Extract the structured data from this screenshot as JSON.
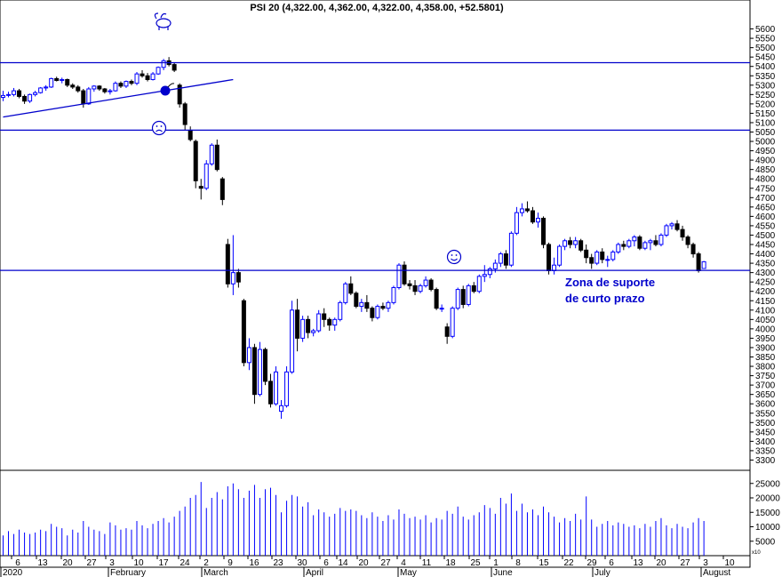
{
  "chart_data": {
    "type": "candlestick",
    "title": "PSI 20 (4,322.00, 4,362.00, 4,322.00, 4,358.00, +52.5801)",
    "price_axis": {
      "range": [
        3250,
        5650
      ],
      "ticks": [
        3300,
        3350,
        3400,
        3450,
        3500,
        3550,
        3600,
        3650,
        3700,
        3750,
        3800,
        3850,
        3900,
        3950,
        4000,
        4050,
        4100,
        4150,
        4200,
        4250,
        4300,
        4350,
        4400,
        4450,
        4500,
        4550,
        4600,
        4650,
        4700,
        4750,
        4800,
        4850,
        4900,
        4950,
        5000,
        5050,
        5100,
        5150,
        5200,
        5250,
        5300,
        5350,
        5400,
        5450,
        5500,
        5550,
        5600
      ]
    },
    "volume_axis": {
      "range": [
        0,
        28000
      ],
      "ticks": [
        5000,
        10000,
        15000,
        20000,
        25000
      ],
      "scale_note": "x10"
    },
    "date_ticks": [
      "6",
      "13",
      "20",
      "27",
      "3",
      "10",
      "17",
      "24",
      "2",
      "9",
      "16",
      "23",
      "30",
      "6",
      "14",
      "20",
      "27",
      "4",
      "11",
      "18",
      "25",
      "1",
      "8",
      "15",
      "22",
      "29",
      "6",
      "13",
      "20",
      "27",
      "3",
      "10"
    ],
    "months": [
      "2020",
      "February",
      "March",
      "April",
      "May",
      "June",
      "July",
      "August"
    ],
    "horizontal_lines": [
      5420,
      5060,
      4312
    ],
    "trendline": {
      "from": [
        "2020-01-02",
        5130
      ],
      "to": [
        "2020-02-27",
        5330
      ]
    },
    "annotation": {
      "line1": "Zona de suporte",
      "line2": "de curto prazo"
    },
    "icons": [
      "bull-icon",
      "bomb-icon",
      "sad-face-icon",
      "smiley-face-icon"
    ],
    "colors": {
      "line": "#0000cc",
      "up_candle": "#0000ff",
      "down_candle": "#000000",
      "volume": "#0000ff"
    },
    "candles": [
      [
        5235,
        5270,
        5215,
        5245,
        7000
      ],
      [
        5248,
        5265,
        5235,
        5250,
        8500
      ],
      [
        5250,
        5285,
        5240,
        5270,
        7500
      ],
      [
        5270,
        5280,
        5230,
        5240,
        9000
      ],
      [
        5240,
        5250,
        5200,
        5215,
        8000
      ],
      [
        5215,
        5255,
        5205,
        5250,
        7500
      ],
      [
        5250,
        5270,
        5240,
        5260,
        8000
      ],
      [
        5260,
        5290,
        5255,
        5285,
        9000
      ],
      [
        5285,
        5300,
        5270,
        5290,
        8500
      ],
      [
        5290,
        5340,
        5285,
        5335,
        11000
      ],
      [
        5335,
        5345,
        5320,
        5325,
        10000
      ],
      [
        5325,
        5340,
        5310,
        5330,
        9500
      ],
      [
        5330,
        5335,
        5290,
        5300,
        7000
      ],
      [
        5300,
        5310,
        5280,
        5290,
        9000
      ],
      [
        5290,
        5300,
        5260,
        5270,
        8000
      ],
      [
        5270,
        5280,
        5180,
        5200,
        12000
      ],
      [
        5200,
        5290,
        5195,
        5280,
        10000
      ],
      [
        5280,
        5300,
        5265,
        5295,
        9000
      ],
      [
        5295,
        5300,
        5270,
        5280,
        8500
      ],
      [
        5280,
        5285,
        5255,
        5265,
        7500
      ],
      [
        5265,
        5280,
        5250,
        5270,
        11500
      ],
      [
        5270,
        5320,
        5265,
        5310,
        10500
      ],
      [
        5310,
        5320,
        5285,
        5295,
        9000
      ],
      [
        5295,
        5325,
        5285,
        5320,
        9500
      ],
      [
        5320,
        5330,
        5300,
        5310,
        9000
      ],
      [
        5310,
        5370,
        5300,
        5360,
        12000
      ],
      [
        5360,
        5380,
        5340,
        5350,
        10500
      ],
      [
        5350,
        5365,
        5320,
        5330,
        9500
      ],
      [
        5330,
        5370,
        5325,
        5360,
        11000
      ],
      [
        5360,
        5400,
        5355,
        5395,
        12000
      ],
      [
        5395,
        5440,
        5380,
        5430,
        13000
      ],
      [
        5430,
        5450,
        5400,
        5410,
        11500
      ],
      [
        5410,
        5420,
        5370,
        5380,
        13500
      ],
      [
        5300,
        5310,
        5180,
        5200,
        15500
      ],
      [
        5200,
        5210,
        5060,
        5090,
        17000
      ],
      [
        5060,
        5080,
        5000,
        5010,
        20000
      ],
      [
        5000,
        5010,
        4750,
        4790,
        21000
      ],
      [
        4760,
        4800,
        4690,
        4750,
        25500
      ],
      [
        4750,
        4900,
        4740,
        4880,
        16500
      ],
      [
        4880,
        4990,
        4870,
        4980,
        20000
      ],
      [
        4980,
        5010,
        4840,
        4850,
        22000
      ],
      [
        4800,
        4810,
        4660,
        4690,
        19500
      ],
      [
        4450,
        4480,
        4220,
        4240,
        24000
      ],
      [
        4240,
        4500,
        4180,
        4300,
        25000
      ],
      [
        4300,
        4320,
        4220,
        4250,
        23000
      ],
      [
        4150,
        4160,
        3800,
        3820,
        20000
      ],
      [
        3820,
        3950,
        3780,
        3900,
        22500
      ],
      [
        3900,
        3920,
        3600,
        3650,
        24500
      ],
      [
        3650,
        3930,
        3640,
        3890,
        20000
      ],
      [
        3890,
        3900,
        3700,
        3720,
        23000
      ],
      [
        3720,
        3760,
        3580,
        3600,
        23500
      ],
      [
        3600,
        3800,
        3590,
        3770,
        21000
      ],
      [
        3560,
        3620,
        3520,
        3590,
        15000
      ],
      [
        3590,
        3800,
        3580,
        3770,
        19000
      ],
      [
        3770,
        4150,
        3760,
        4100,
        21000
      ],
      [
        4100,
        4160,
        3880,
        3950,
        20500
      ],
      [
        3950,
        4070,
        3930,
        4050,
        17000
      ],
      [
        4050,
        4070,
        3950,
        3980,
        18500
      ],
      [
        3980,
        4000,
        3960,
        3990,
        14000
      ],
      [
        3990,
        4100,
        3980,
        4080,
        16000
      ],
      [
        4080,
        4110,
        4010,
        4050,
        15000
      ],
      [
        4050,
        4060,
        3990,
        4020,
        13500
      ],
      [
        4020,
        4060,
        3990,
        4050,
        14500
      ],
      [
        4050,
        4150,
        4040,
        4140,
        16500
      ],
      [
        4140,
        4250,
        4130,
        4240,
        15500
      ],
      [
        4240,
        4280,
        4180,
        4190,
        16000
      ],
      [
        4190,
        4200,
        4110,
        4120,
        15500
      ],
      [
        4120,
        4160,
        4090,
        4140,
        14000
      ],
      [
        4140,
        4180,
        4090,
        4110,
        13000
      ],
      [
        4110,
        4120,
        4040,
        4060,
        15000
      ],
      [
        4060,
        4130,
        4050,
        4120,
        13500
      ],
      [
        4120,
        4140,
        4100,
        4110,
        12000
      ],
      [
        4110,
        4150,
        4090,
        4140,
        14000
      ],
      [
        4140,
        4230,
        4130,
        4220,
        12500
      ],
      [
        4220,
        4350,
        4210,
        4340,
        16000
      ],
      [
        4340,
        4360,
        4230,
        4240,
        14500
      ],
      [
        4240,
        4260,
        4210,
        4230,
        13000
      ],
      [
        4230,
        4260,
        4180,
        4200,
        13500
      ],
      [
        4200,
        4240,
        4190,
        4230,
        12500
      ],
      [
        4230,
        4280,
        4220,
        4260,
        14000
      ],
      [
        4260,
        4270,
        4200,
        4210,
        11500
      ],
      [
        4210,
        4220,
        4100,
        4110,
        13000
      ],
      [
        4110,
        4130,
        4090,
        4110,
        12500
      ],
      [
        4010,
        4030,
        3920,
        3960,
        15500
      ],
      [
        3960,
        4120,
        3950,
        4110,
        14500
      ],
      [
        4110,
        4220,
        4100,
        4210,
        17000
      ],
      [
        4210,
        4230,
        4110,
        4130,
        13500
      ],
      [
        4130,
        4240,
        4120,
        4230,
        12500
      ],
      [
        4230,
        4250,
        4190,
        4200,
        14000
      ],
      [
        4200,
        4290,
        4190,
        4280,
        15000
      ],
      [
        4280,
        4340,
        4250,
        4290,
        17500
      ],
      [
        4290,
        4330,
        4270,
        4320,
        16500
      ],
      [
        4320,
        4370,
        4300,
        4350,
        14500
      ],
      [
        4350,
        4410,
        4330,
        4400,
        20000
      ],
      [
        4400,
        4420,
        4320,
        4340,
        18000
      ],
      [
        4340,
        4520,
        4330,
        4510,
        21500
      ],
      [
        4510,
        4650,
        4500,
        4620,
        15500
      ],
      [
        4620,
        4670,
        4600,
        4640,
        18000
      ],
      [
        4640,
        4680,
        4620,
        4630,
        15000
      ],
      [
        4630,
        4650,
        4560,
        4570,
        16000
      ],
      [
        4570,
        4620,
        4540,
        4590,
        14000
      ],
      [
        4590,
        4600,
        4430,
        4450,
        17000
      ],
      [
        4450,
        4460,
        4290,
        4310,
        15000
      ],
      [
        4310,
        4380,
        4290,
        4340,
        13500
      ],
      [
        4340,
        4450,
        4330,
        4440,
        11500
      ],
      [
        4440,
        4480,
        4420,
        4470,
        13000
      ],
      [
        4470,
        4490,
        4430,
        4450,
        12000
      ],
      [
        4450,
        4490,
        4430,
        4470,
        14500
      ],
      [
        4470,
        4480,
        4410,
        4420,
        12500
      ],
      [
        4420,
        4450,
        4350,
        4380,
        20500
      ],
      [
        4380,
        4400,
        4320,
        4350,
        12500
      ],
      [
        4350,
        4420,
        4340,
        4410,
        10000
      ],
      [
        4410,
        4430,
        4350,
        4370,
        11000
      ],
      [
        4370,
        4390,
        4330,
        4370,
        12000
      ],
      [
        4370,
        4420,
        4360,
        4410,
        10500
      ],
      [
        4410,
        4460,
        4400,
        4450,
        11500
      ],
      [
        4450,
        4470,
        4420,
        4440,
        11000
      ],
      [
        4440,
        4480,
        4430,
        4470,
        10000
      ],
      [
        4470,
        4500,
        4440,
        4490,
        10500
      ],
      [
        4490,
        4500,
        4420,
        4430,
        9500
      ],
      [
        4430,
        4470,
        4420,
        4460,
        11000
      ],
      [
        4460,
        4480,
        4420,
        4470,
        10000
      ],
      [
        4470,
        4500,
        4440,
        4450,
        12000
      ],
      [
        4450,
        4510,
        4440,
        4500,
        13000
      ],
      [
        4500,
        4560,
        4490,
        4550,
        10500
      ],
      [
        4550,
        4570,
        4530,
        4560,
        9500
      ],
      [
        4560,
        4580,
        4520,
        4530,
        11000
      ],
      [
        4530,
        4550,
        4470,
        4490,
        10000
      ],
      [
        4490,
        4500,
        4430,
        4450,
        9500
      ],
      [
        4450,
        4460,
        4380,
        4400,
        11500
      ],
      [
        4400,
        4410,
        4300,
        4310,
        13000
      ],
      [
        4322,
        4362,
        4322,
        4358,
        12000
      ]
    ]
  }
}
